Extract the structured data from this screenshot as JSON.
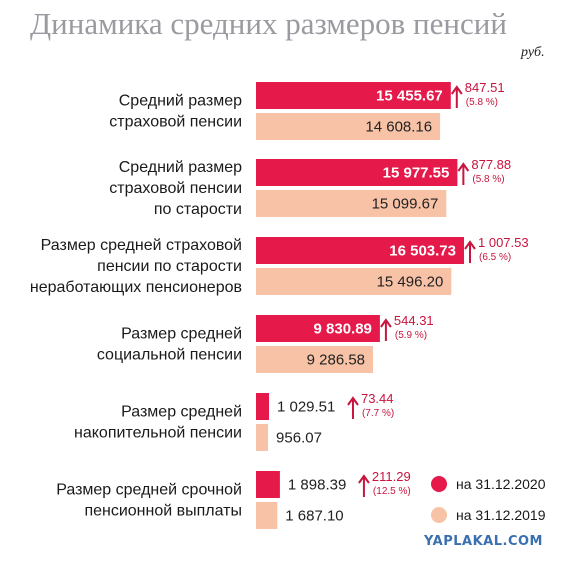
{
  "chart_data": {
    "type": "bar",
    "title": "Динамика средних размеров пенсий",
    "unit": "руб.",
    "categories": [
      [
        "Средний размер",
        "страховой пенсии"
      ],
      [
        "Средний размер",
        "страховой пенсии",
        "по старости"
      ],
      [
        "Размер средней страховой",
        "пенсии по старости",
        "неработающих пенсионеров"
      ],
      [
        "Размер средней",
        "социальной пенсии"
      ],
      [
        "Размер средней",
        "накопительной пенсии"
      ],
      [
        "Размер средней срочной",
        "пенсионной выплаты"
      ]
    ],
    "series": [
      {
        "name": "на 31.12.2020",
        "color": "#e5194a",
        "values": [
          15455.67,
          15977.55,
          16503.73,
          9830.89,
          1029.51,
          1898.39
        ],
        "labels": [
          "15 455.67",
          "15 977.55",
          "16 503.73",
          "9 830.89",
          "1 029.51",
          "1 898.39"
        ]
      },
      {
        "name": "на 31.12.2019",
        "color": "#f8c2a6",
        "values": [
          14608.16,
          15099.67,
          15496.2,
          9286.58,
          956.07,
          1687.1
        ],
        "labels": [
          "14 608.16",
          "15 099.67",
          "15 496.20",
          "9 286.58",
          "956.07",
          "1 687.10"
        ]
      }
    ],
    "changes": [
      {
        "value": "847.51",
        "percent": "(5.8 %)"
      },
      {
        "value": "877.88",
        "percent": "(5.8 %)"
      },
      {
        "value": "1 007.53",
        "percent": "(6.5 %)"
      },
      {
        "value": "544.31",
        "percent": "(5.9 %)"
      },
      {
        "value": "73.44",
        "percent": "(7.7 %)"
      },
      {
        "value": "211.29",
        "percent": "(12.5 %)"
      }
    ],
    "legend_position": "bottom-right",
    "grid": false
  },
  "watermark": "YAPLAKAL.COM",
  "colors": {
    "title": "#9a9aa0",
    "accent": "#e5194a",
    "change_text": "#c8143e",
    "prev": "#f8c2a6"
  }
}
